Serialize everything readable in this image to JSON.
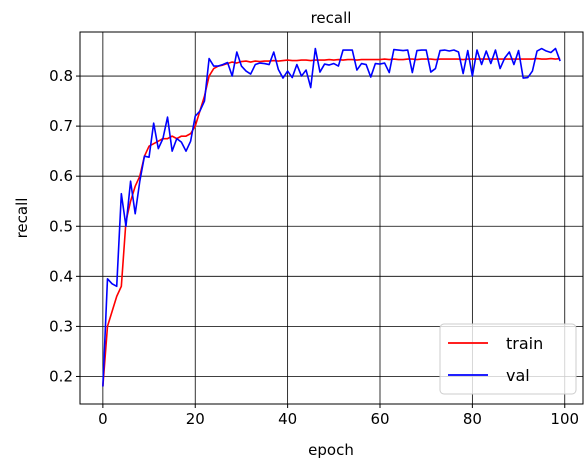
{
  "chart_data": {
    "type": "line",
    "title": "recall",
    "xlabel": "epoch",
    "ylabel": "recall",
    "xlim": [
      -4.95,
      103.95
    ],
    "ylim": [
      0.145,
      0.888
    ],
    "xticks": [
      0,
      20,
      40,
      60,
      80,
      100
    ],
    "yticks": [
      0.2,
      0.3,
      0.4,
      0.5,
      0.6,
      0.7,
      0.8
    ],
    "xtick_labels": [
      "0",
      "20",
      "40",
      "60",
      "80",
      "100"
    ],
    "ytick_labels": [
      "0.2",
      "0.3",
      "0.4",
      "0.5",
      "0.6",
      "0.7",
      "0.8"
    ],
    "grid": true,
    "legend_position": "bottom-right",
    "series": [
      {
        "name": "train",
        "color": "#ff0000",
        "x": [
          0,
          1,
          2,
          3,
          4,
          5,
          6,
          7,
          8,
          9,
          10,
          11,
          12,
          13,
          14,
          15,
          16,
          17,
          18,
          19,
          20,
          21,
          22,
          23,
          24,
          25,
          26,
          27,
          28,
          29,
          30,
          31,
          32,
          33,
          34,
          35,
          36,
          37,
          38,
          39,
          40,
          41,
          42,
          43,
          44,
          45,
          46,
          47,
          48,
          49,
          50,
          51,
          52,
          53,
          54,
          55,
          56,
          57,
          58,
          59,
          60,
          61,
          62,
          63,
          64,
          65,
          66,
          67,
          68,
          69,
          70,
          71,
          72,
          73,
          74,
          75,
          76,
          77,
          78,
          79,
          80,
          81,
          82,
          83,
          84,
          85,
          86,
          87,
          88,
          89,
          90,
          91,
          92,
          93,
          94,
          95,
          96,
          97,
          98,
          99
        ],
        "values": [
          0.18,
          0.3,
          0.33,
          0.36,
          0.38,
          0.51,
          0.55,
          0.58,
          0.6,
          0.64,
          0.66,
          0.665,
          0.67,
          0.675,
          0.675,
          0.68,
          0.675,
          0.68,
          0.68,
          0.685,
          0.7,
          0.73,
          0.76,
          0.8,
          0.815,
          0.82,
          0.822,
          0.825,
          0.828,
          0.826,
          0.829,
          0.83,
          0.828,
          0.83,
          0.829,
          0.83,
          0.83,
          0.831,
          0.83,
          0.831,
          0.832,
          0.831,
          0.831,
          0.832,
          0.832,
          0.831,
          0.832,
          0.832,
          0.832,
          0.833,
          0.832,
          0.833,
          0.832,
          0.833,
          0.833,
          0.832,
          0.833,
          0.833,
          0.833,
          0.833,
          0.833,
          0.834,
          0.833,
          0.834,
          0.833,
          0.833,
          0.834,
          0.834,
          0.833,
          0.834,
          0.834,
          0.834,
          0.833,
          0.834,
          0.834,
          0.834,
          0.834,
          0.834,
          0.833,
          0.834,
          0.834,
          0.834,
          0.834,
          0.834,
          0.834,
          0.834,
          0.834,
          0.834,
          0.834,
          0.834,
          0.834,
          0.834,
          0.834,
          0.834,
          0.835,
          0.834,
          0.834,
          0.835,
          0.834,
          0.835
        ]
      },
      {
        "name": "val",
        "color": "#0000ff",
        "x": [
          0,
          1,
          2,
          3,
          4,
          5,
          6,
          7,
          8,
          9,
          10,
          11,
          12,
          13,
          14,
          15,
          16,
          17,
          18,
          19,
          20,
          21,
          22,
          23,
          24,
          25,
          26,
          27,
          28,
          29,
          30,
          31,
          32,
          33,
          34,
          35,
          36,
          37,
          38,
          39,
          40,
          41,
          42,
          43,
          44,
          45,
          46,
          47,
          48,
          49,
          50,
          51,
          52,
          53,
          54,
          55,
          56,
          57,
          58,
          59,
          60,
          61,
          62,
          63,
          64,
          65,
          66,
          67,
          68,
          69,
          70,
          71,
          72,
          73,
          74,
          75,
          76,
          77,
          78,
          79,
          80,
          81,
          82,
          83,
          84,
          85,
          86,
          87,
          88,
          89,
          90,
          91,
          92,
          93,
          94,
          95,
          96,
          97,
          98,
          99
        ],
        "values": [
          0.18,
          0.395,
          0.385,
          0.38,
          0.565,
          0.5,
          0.59,
          0.525,
          0.59,
          0.64,
          0.638,
          0.706,
          0.655,
          0.675,
          0.718,
          0.65,
          0.675,
          0.668,
          0.65,
          0.67,
          0.72,
          0.73,
          0.75,
          0.835,
          0.82,
          0.82,
          0.823,
          0.827,
          0.8,
          0.848,
          0.82,
          0.81,
          0.804,
          0.823,
          0.826,
          0.825,
          0.823,
          0.848,
          0.813,
          0.796,
          0.81,
          0.797,
          0.823,
          0.8,
          0.812,
          0.777,
          0.855,
          0.808,
          0.824,
          0.822,
          0.825,
          0.82,
          0.852,
          0.852,
          0.852,
          0.812,
          0.825,
          0.823,
          0.798,
          0.825,
          0.824,
          0.826,
          0.807,
          0.853,
          0.852,
          0.851,
          0.852,
          0.807,
          0.851,
          0.852,
          0.852,
          0.808,
          0.815,
          0.851,
          0.852,
          0.85,
          0.852,
          0.848,
          0.805,
          0.851,
          0.8,
          0.852,
          0.823,
          0.85,
          0.825,
          0.852,
          0.815,
          0.836,
          0.848,
          0.823,
          0.851,
          0.796,
          0.797,
          0.81,
          0.85,
          0.855,
          0.85,
          0.847,
          0.855,
          0.83
        ]
      }
    ]
  }
}
